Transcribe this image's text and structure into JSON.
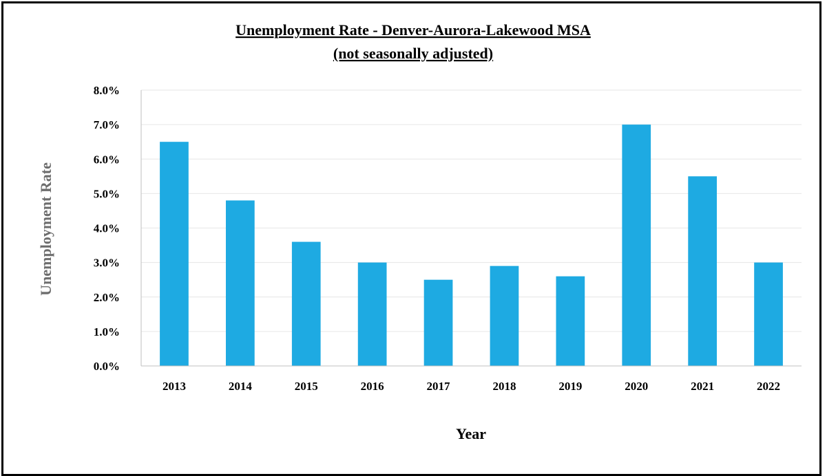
{
  "chart_data": {
    "type": "bar",
    "title": [
      "Unemployment Rate - Denver-Aurora-Lakewood MSA",
      "(not seasonally adjusted)"
    ],
    "xlabel": "Year",
    "ylabel": "Unemployment Rate",
    "categories": [
      "2013",
      "2014",
      "2015",
      "2016",
      "2017",
      "2018",
      "2019",
      "2020",
      "2021",
      "2022"
    ],
    "values": [
      6.5,
      4.8,
      3.6,
      3.0,
      2.5,
      2.9,
      2.6,
      7.0,
      5.5,
      3.0
    ],
    "ylim": [
      0,
      8
    ],
    "yticks": [
      "0.0%",
      "1.0%",
      "2.0%",
      "3.0%",
      "4.0%",
      "5.0%",
      "6.0%",
      "7.0%",
      "8.0%"
    ],
    "grid": true,
    "legend": "none",
    "bar_color": "#1EAAE2"
  }
}
